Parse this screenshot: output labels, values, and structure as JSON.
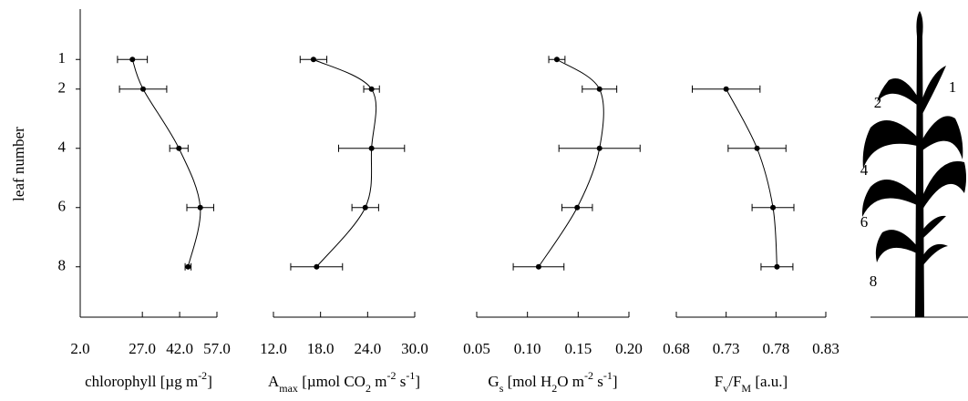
{
  "chart_data": [
    {
      "type": "line",
      "ylabel": "leaf number",
      "xlabel": [
        {
          "text": "chlorophyll [µg m"
        },
        {
          "text": "-2",
          "sup": true
        },
        {
          "text": "]"
        }
      ],
      "y": [
        1,
        2,
        4,
        6,
        8
      ],
      "values": [
        23,
        27.3,
        41.7,
        50.3,
        45.4
      ],
      "errors": [
        6,
        9.5,
        3.7,
        5.4,
        1.2
      ],
      "xlim": [
        2,
        57
      ],
      "xticks": [
        {
          "value": 2,
          "label": "2.0"
        },
        {
          "value": 27,
          "label": "27.0"
        },
        {
          "value": 42,
          "label": "42.0"
        },
        {
          "value": 57,
          "label": "57.0"
        }
      ],
      "ylim": [
        9.7,
        -0.7
      ],
      "yticks": [
        1,
        2,
        4,
        6,
        8
      ],
      "color": "#000000"
    },
    {
      "type": "line",
      "xlabel": [
        {
          "text": "A"
        },
        {
          "text": "max",
          "sub": true
        },
        {
          "text": " [µmol CO"
        },
        {
          "text": "2",
          "sub": true
        },
        {
          "text": " m"
        },
        {
          "text": "-2",
          "sup": true
        },
        {
          "text": " s"
        },
        {
          "text": "-1",
          "sup": true
        },
        {
          "text": "]"
        }
      ],
      "y": [
        1,
        2,
        4,
        6,
        8
      ],
      "values": [
        17.1,
        24.5,
        24.5,
        23.7,
        17.5
      ],
      "errors": [
        1.7,
        1.0,
        4.2,
        1.7,
        3.3
      ],
      "xlim": [
        12,
        30
      ],
      "xticks": [
        {
          "value": 12,
          "label": "12.0"
        },
        {
          "value": 18,
          "label": "18.0"
        },
        {
          "value": 24,
          "label": "24.0"
        },
        {
          "value": 30,
          "label": "30.0"
        }
      ],
      "ylim": [
        9.7,
        -0.7
      ],
      "color": "#000000"
    },
    {
      "type": "line",
      "xlabel": [
        {
          "text": "G"
        },
        {
          "text": "s",
          "sub": true
        },
        {
          "text": " [mol H"
        },
        {
          "text": "2",
          "sub": true
        },
        {
          "text": "O m"
        },
        {
          "text": "-2",
          "sup": true
        },
        {
          "text": " s"
        },
        {
          "text": "-1",
          "sup": true
        },
        {
          "text": "]"
        }
      ],
      "y": [
        1,
        2,
        4,
        6,
        8
      ],
      "values": [
        0.129,
        0.171,
        0.171,
        0.149,
        0.111
      ],
      "errors": [
        0.008,
        0.017,
        0.04,
        0.015,
        0.025
      ],
      "xlim": [
        0.05,
        0.2
      ],
      "xticks": [
        0.05,
        {
          "value": 0.1,
          "label": "0.10"
        },
        0.15,
        {
          "value": 0.2,
          "label": "0.20"
        }
      ],
      "ylim": [
        9.7,
        -0.7
      ],
      "color": "#000000"
    },
    {
      "type": "line",
      "xlabel": [
        {
          "text": "F"
        },
        {
          "text": "v",
          "sub": true
        },
        {
          "text": "/F"
        },
        {
          "text": "M",
          "sub": true
        },
        {
          "text": " [a.u.]"
        }
      ],
      "y": [
        1,
        2,
        4,
        6,
        8
      ],
      "values": [
        null,
        0.73,
        0.761,
        0.777,
        0.781
      ],
      "errors": [
        null,
        0.034,
        0.029,
        0.021,
        0.016
      ],
      "xlim": [
        0.68,
        0.83
      ],
      "xticks": [
        0.68,
        0.73,
        0.78,
        0.83
      ],
      "ylim": [
        9.7,
        -0.7
      ],
      "color": "#000000"
    }
  ],
  "plant_labels": [
    "1",
    "2",
    "4",
    "6",
    "8"
  ]
}
